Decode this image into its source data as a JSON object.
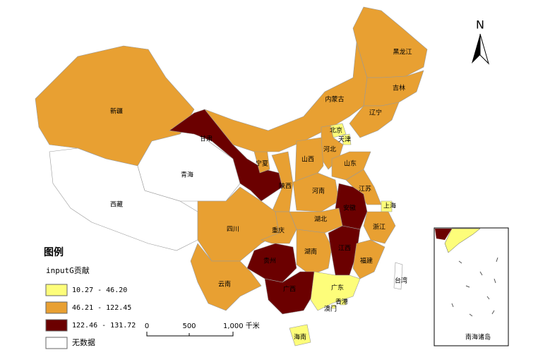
{
  "map": {
    "regions": [
      {
        "name": "新疆",
        "color": "#e8a032"
      },
      {
        "name": "西藏",
        "color": "#ffffff"
      },
      {
        "name": "青海",
        "color": "#ffffff"
      },
      {
        "name": "甘肃",
        "color": "#6b0000"
      },
      {
        "name": "宁夏",
        "color": "#e8a032"
      },
      {
        "name": "陕西",
        "color": "#e8a032"
      },
      {
        "name": "内蒙古",
        "color": "#e8a032"
      },
      {
        "name": "黑龙江",
        "color": "#e8a032"
      },
      {
        "name": "吉林",
        "color": "#e8a032"
      },
      {
        "name": "辽宁",
        "color": "#e8a032"
      },
      {
        "name": "北京",
        "color": "#fdfd7a"
      },
      {
        "name": "天津",
        "color": "#fdfd7a"
      },
      {
        "name": "河北",
        "color": "#e8a032"
      },
      {
        "name": "山西",
        "color": "#e8a032"
      },
      {
        "name": "山东",
        "color": "#e8a032"
      },
      {
        "name": "河南",
        "color": "#e8a032"
      },
      {
        "name": "江苏",
        "color": "#e8a032"
      },
      {
        "name": "安徽",
        "color": "#6b0000"
      },
      {
        "name": "上海",
        "color": "#fdfd7a"
      },
      {
        "name": "浙江",
        "color": "#e8a032"
      },
      {
        "name": "湖北",
        "color": "#e8a032"
      },
      {
        "name": "四川",
        "color": "#e8a032"
      },
      {
        "name": "重庆",
        "color": "#e8a032"
      },
      {
        "name": "湖南",
        "color": "#e8a032"
      },
      {
        "name": "江西",
        "color": "#6b0000"
      },
      {
        "name": "福建",
        "color": "#e8a032"
      },
      {
        "name": "贵州",
        "color": "#6b0000"
      },
      {
        "name": "云南",
        "color": "#e8a032"
      },
      {
        "name": "广西",
        "color": "#6b0000"
      },
      {
        "name": "广东",
        "color": "#fdfd7a"
      },
      {
        "name": "香港",
        "color": "#fdfd7a"
      },
      {
        "name": "澳门",
        "color": "#fdfd7a"
      },
      {
        "name": "台湾",
        "color": "#ffffff"
      },
      {
        "name": "海南",
        "color": "#fdfd7a"
      }
    ],
    "legend": {
      "title": "图例",
      "field": "inputG贡献",
      "classes": [
        {
          "label": "10.27 - 46.20",
          "color": "#fdfd7a"
        },
        {
          "label": "46.21 - 122.45",
          "color": "#e8a032"
        },
        {
          "label": "122.46 - 131.72",
          "color": "#6b0000"
        },
        {
          "label": "无数据",
          "color": "#ffffff"
        }
      ]
    },
    "scale_bar": {
      "ticks": [
        "0",
        "500",
        "1,000 千米"
      ]
    },
    "north": "N",
    "inset_title": "南海诸岛"
  }
}
